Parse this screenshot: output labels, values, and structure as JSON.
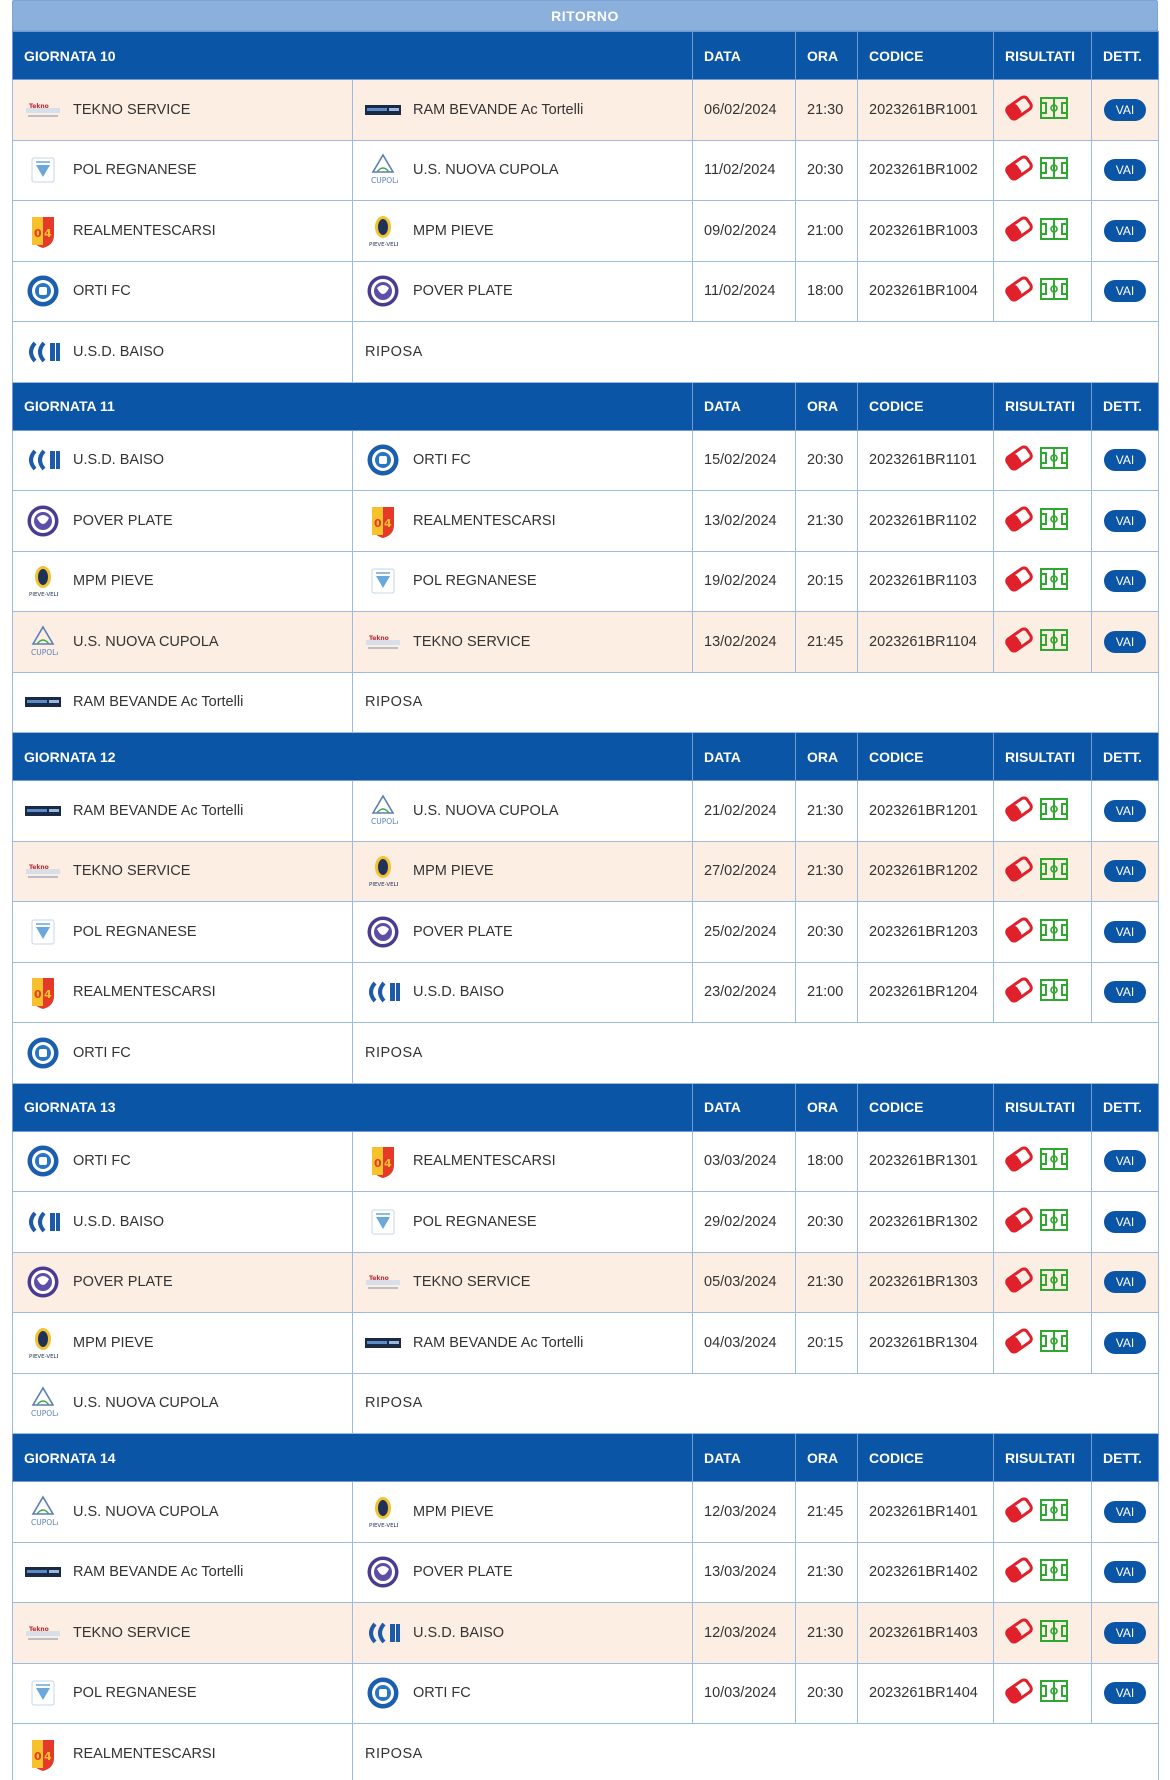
{
  "banner": "RITORNO",
  "headers": {
    "date": "DATA",
    "time": "ORA",
    "code": "CODICE",
    "results": "RISULTATI",
    "details": "DETT."
  },
  "vai_label": "VAI",
  "riposa_label": "RIPOSA",
  "colors": {
    "header_bg": "#0b55a6",
    "banner_bg": "#8bb0dc",
    "highlight_row": "#fdeee4",
    "result_icon_red": "#e0202a",
    "field_icon_green": "#2fa82f"
  },
  "rounds": [
    {
      "title": "GIORNATA 10",
      "matches": [
        {
          "home": "TEKNO SERVICE",
          "home_logo": "tekno-logo",
          "away": "RAM BEVANDE Ac Tortelli",
          "away_logo": "ram-logo",
          "date": "06/02/2024",
          "time": "21:30",
          "code": "2023261BR1001",
          "highlight": true
        },
        {
          "home": "POL REGNANESE",
          "home_logo": "regnanese-logo",
          "away": "U.S. NUOVA CUPOLA",
          "away_logo": "cupola-logo",
          "date": "11/02/2024",
          "time": "20:30",
          "code": "2023261BR1002",
          "highlight": false
        },
        {
          "home": "REALMENTESCARSI",
          "home_logo": "realmente-logo",
          "away": "MPM PIEVE",
          "away_logo": "mpm-logo",
          "date": "09/02/2024",
          "time": "21:00",
          "code": "2023261BR1003",
          "highlight": false
        },
        {
          "home": "ORTI FC",
          "home_logo": "orti-logo",
          "away": "POVER PLATE",
          "away_logo": "pover-logo",
          "date": "11/02/2024",
          "time": "18:00",
          "code": "2023261BR1004",
          "highlight": false
        }
      ],
      "rest": {
        "team": "U.S.D. BAISO",
        "logo": "baiso-logo"
      }
    },
    {
      "title": "GIORNATA 11",
      "matches": [
        {
          "home": "U.S.D. BAISO",
          "home_logo": "baiso-logo",
          "away": "ORTI FC",
          "away_logo": "orti-logo",
          "date": "15/02/2024",
          "time": "20:30",
          "code": "2023261BR1101",
          "highlight": false
        },
        {
          "home": "POVER PLATE",
          "home_logo": "pover-logo",
          "away": "REALMENTESCARSI",
          "away_logo": "realmente-logo",
          "date": "13/02/2024",
          "time": "21:30",
          "code": "2023261BR1102",
          "highlight": false
        },
        {
          "home": "MPM PIEVE",
          "home_logo": "mpm-logo",
          "away": "POL REGNANESE",
          "away_logo": "regnanese-logo",
          "date": "19/02/2024",
          "time": "20:15",
          "code": "2023261BR1103",
          "highlight": false
        },
        {
          "home": "U.S. NUOVA CUPOLA",
          "home_logo": "cupola-logo",
          "away": "TEKNO SERVICE",
          "away_logo": "tekno-logo",
          "date": "13/02/2024",
          "time": "21:45",
          "code": "2023261BR1104",
          "highlight": true
        }
      ],
      "rest": {
        "team": "RAM BEVANDE Ac Tortelli",
        "logo": "ram-logo"
      }
    },
    {
      "title": "GIORNATA 12",
      "matches": [
        {
          "home": "RAM BEVANDE Ac Tortelli",
          "home_logo": "ram-logo",
          "away": "U.S. NUOVA CUPOLA",
          "away_logo": "cupola-logo",
          "date": "21/02/2024",
          "time": "21:30",
          "code": "2023261BR1201",
          "highlight": false
        },
        {
          "home": "TEKNO SERVICE",
          "home_logo": "tekno-logo",
          "away": "MPM PIEVE",
          "away_logo": "mpm-logo",
          "date": "27/02/2024",
          "time": "21:30",
          "code": "2023261BR1202",
          "highlight": true
        },
        {
          "home": "POL REGNANESE",
          "home_logo": "regnanese-logo",
          "away": "POVER PLATE",
          "away_logo": "pover-logo",
          "date": "25/02/2024",
          "time": "20:30",
          "code": "2023261BR1203",
          "highlight": false
        },
        {
          "home": "REALMENTESCARSI",
          "home_logo": "realmente-logo",
          "away": "U.S.D. BAISO",
          "away_logo": "baiso-logo",
          "date": "23/02/2024",
          "time": "21:00",
          "code": "2023261BR1204",
          "highlight": false
        }
      ],
      "rest": {
        "team": "ORTI FC",
        "logo": "orti-logo"
      }
    },
    {
      "title": "GIORNATA 13",
      "matches": [
        {
          "home": "ORTI FC",
          "home_logo": "orti-logo",
          "away": "REALMENTESCARSI",
          "away_logo": "realmente-logo",
          "date": "03/03/2024",
          "time": "18:00",
          "code": "2023261BR1301",
          "highlight": false
        },
        {
          "home": "U.S.D. BAISO",
          "home_logo": "baiso-logo",
          "away": "POL REGNANESE",
          "away_logo": "regnanese-logo",
          "date": "29/02/2024",
          "time": "20:30",
          "code": "2023261BR1302",
          "highlight": false
        },
        {
          "home": "POVER PLATE",
          "home_logo": "pover-logo",
          "away": "TEKNO SERVICE",
          "away_logo": "tekno-logo",
          "date": "05/03/2024",
          "time": "21:30",
          "code": "2023261BR1303",
          "highlight": true
        },
        {
          "home": "MPM PIEVE",
          "home_logo": "mpm-logo",
          "away": "RAM BEVANDE Ac Tortelli",
          "away_logo": "ram-logo",
          "date": "04/03/2024",
          "time": "20:15",
          "code": "2023261BR1304",
          "highlight": false
        }
      ],
      "rest": {
        "team": "U.S. NUOVA CUPOLA",
        "logo": "cupola-logo"
      }
    },
    {
      "title": "GIORNATA 14",
      "matches": [
        {
          "home": "U.S. NUOVA CUPOLA",
          "home_logo": "cupola-logo",
          "away": "MPM PIEVE",
          "away_logo": "mpm-logo",
          "date": "12/03/2024",
          "time": "21:45",
          "code": "2023261BR1401",
          "highlight": false
        },
        {
          "home": "RAM BEVANDE Ac Tortelli",
          "home_logo": "ram-logo",
          "away": "POVER PLATE",
          "away_logo": "pover-logo",
          "date": "13/03/2024",
          "time": "21:30",
          "code": "2023261BR1402",
          "highlight": false
        },
        {
          "home": "TEKNO SERVICE",
          "home_logo": "tekno-logo",
          "away": "U.S.D. BAISO",
          "away_logo": "baiso-logo",
          "date": "12/03/2024",
          "time": "21:30",
          "code": "2023261BR1403",
          "highlight": true
        },
        {
          "home": "POL REGNANESE",
          "home_logo": "regnanese-logo",
          "away": "ORTI FC",
          "away_logo": "orti-logo",
          "date": "10/03/2024",
          "time": "20:30",
          "code": "2023261BR1404",
          "highlight": false
        }
      ],
      "rest": {
        "team": "REALMENTESCARSI",
        "logo": "realmente-logo"
      }
    }
  ]
}
